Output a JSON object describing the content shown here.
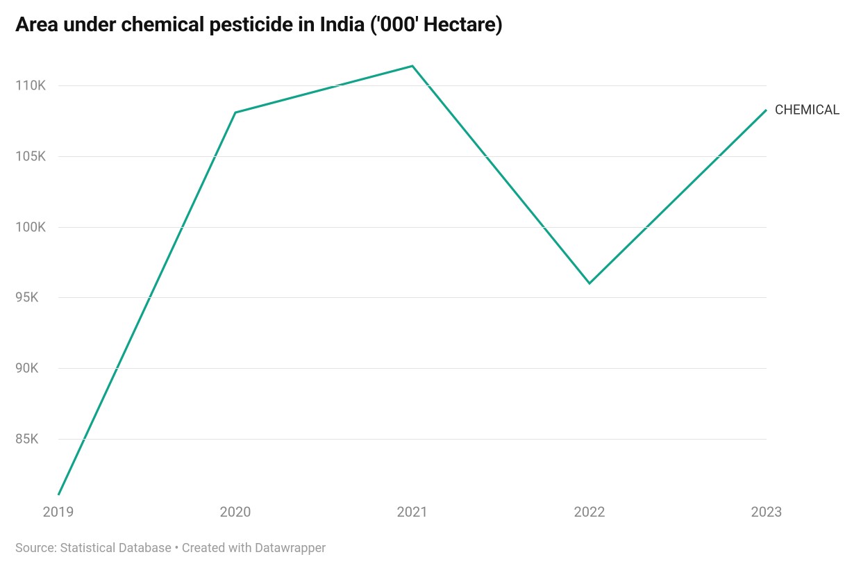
{
  "title": "Area under chemical pesticide in India ('000' Hectare)",
  "footer": "Source: Statistical Database • Created with Datawrapper",
  "chart": {
    "type": "line",
    "background_color": "#ffffff",
    "grid_color": "#e3e3e3",
    "axis_label_color": "#858585",
    "title_color": "#111111",
    "title_fontsize": 30,
    "axis_fontsize": 19,
    "line_width": 3.2,
    "x": {
      "categories": [
        "2019",
        "2020",
        "2021",
        "2022",
        "2023"
      ]
    },
    "y": {
      "min": 81000,
      "max": 111500,
      "ticks": [
        85000,
        90000,
        95000,
        100000,
        105000,
        110000
      ],
      "tick_labels": [
        "85K",
        "90K",
        "95K",
        "100K",
        "105K",
        "110K"
      ]
    },
    "series": [
      {
        "name": "CHEMICAL",
        "color": "#10a38a",
        "values": [
          81000,
          108100,
          111400,
          96000,
          108300
        ]
      }
    ]
  }
}
